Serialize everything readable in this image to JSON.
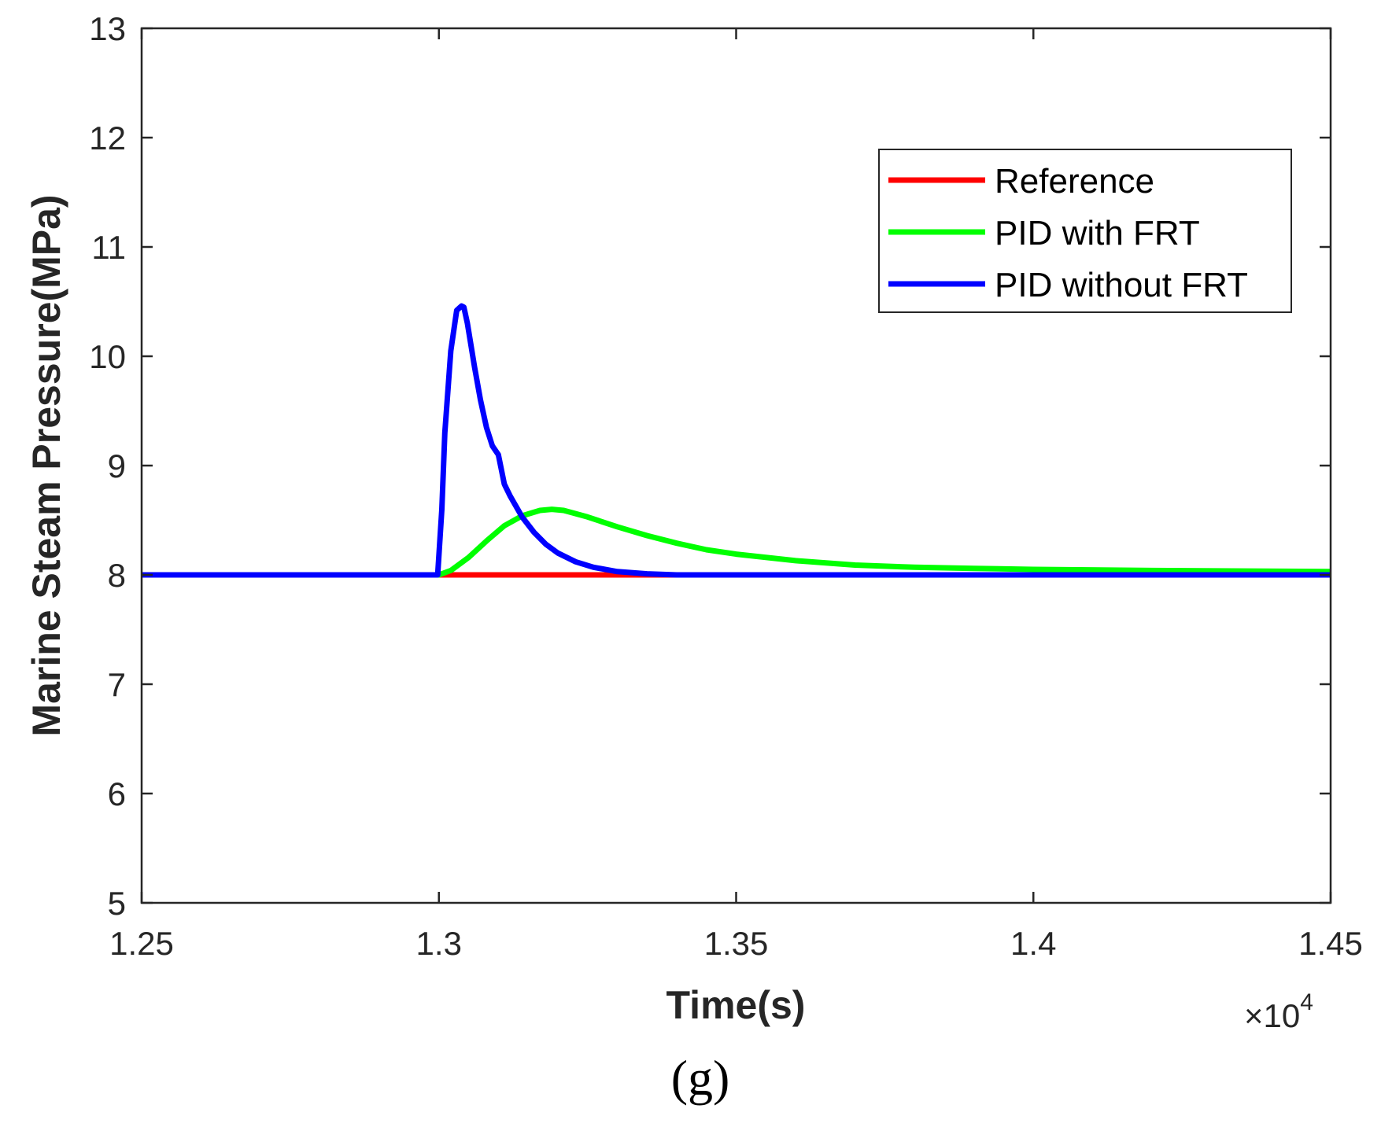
{
  "caption": "(g)",
  "chart_data": {
    "type": "line",
    "title": "",
    "xlabel": "Time(s)",
    "ylabel": "Marine Steam Pressure(MPa)",
    "x_multiplier": "×10",
    "x_multiplier_exp": "4",
    "xlim": [
      1.25,
      1.45
    ],
    "ylim": [
      5,
      13
    ],
    "xticks": [
      1.25,
      1.3,
      1.35,
      1.4,
      1.45
    ],
    "xtick_labels": [
      "1.25",
      "1.3",
      "1.35",
      "1.4",
      "1.45"
    ],
    "yticks": [
      5,
      6,
      7,
      8,
      9,
      10,
      11,
      12,
      13
    ],
    "ytick_labels": [
      "5",
      "6",
      "7",
      "8",
      "9",
      "10",
      "11",
      "12",
      "13"
    ],
    "grid": false,
    "legend_position": "top-right",
    "series": [
      {
        "name": "Reference",
        "color": "#ff0000",
        "x": [
          1.25,
          1.3,
          1.45
        ],
        "y": [
          8,
          8,
          8
        ]
      },
      {
        "name": "PID with FRT",
        "color": "#00ff00",
        "x": [
          1.25,
          1.3,
          1.302,
          1.305,
          1.308,
          1.311,
          1.314,
          1.317,
          1.319,
          1.321,
          1.325,
          1.33,
          1.335,
          1.34,
          1.345,
          1.35,
          1.36,
          1.37,
          1.38,
          1.39,
          1.4,
          1.42,
          1.45
        ],
        "y": [
          8,
          8,
          8.04,
          8.16,
          8.31,
          8.45,
          8.54,
          8.59,
          8.6,
          8.59,
          8.53,
          8.44,
          8.36,
          8.29,
          8.23,
          8.19,
          8.13,
          8.09,
          8.07,
          8.06,
          8.05,
          8.04,
          8.03
        ]
      },
      {
        "name": "PID without FRT",
        "color": "#0000ff",
        "x": [
          1.25,
          1.2998,
          1.3005,
          1.301,
          1.302,
          1.303,
          1.3038,
          1.3042,
          1.3048,
          1.306,
          1.307,
          1.308,
          1.309,
          1.31,
          1.311,
          1.312,
          1.314,
          1.316,
          1.318,
          1.32,
          1.323,
          1.326,
          1.33,
          1.335,
          1.34,
          1.35,
          1.37,
          1.45
        ],
        "y": [
          8,
          8,
          8.6,
          9.3,
          10.05,
          10.42,
          10.46,
          10.45,
          10.3,
          9.9,
          9.6,
          9.35,
          9.18,
          9.1,
          8.83,
          8.72,
          8.53,
          8.39,
          8.28,
          8.2,
          8.12,
          8.07,
          8.03,
          8.01,
          8.0,
          8.0,
          8.0,
          8.0
        ]
      }
    ]
  }
}
